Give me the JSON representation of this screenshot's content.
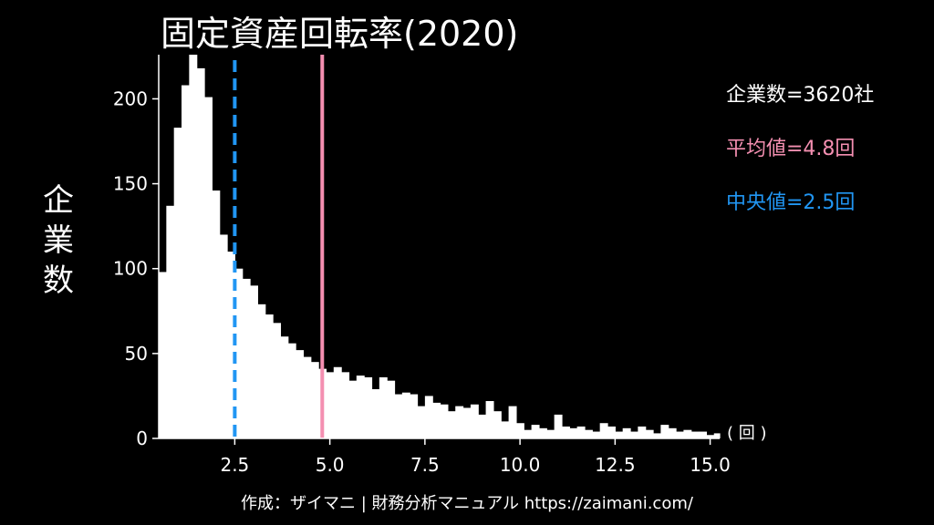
{
  "chart_data": {
    "type": "bar",
    "title": "固定資産回転率(2020)",
    "ylabel": "企業数",
    "xunit": "( 回 )",
    "xlim": [
      0.5,
      15.25
    ],
    "ylim": [
      0,
      226
    ],
    "x_ticks": [
      "2.5",
      "5.0",
      "7.5",
      "10.0",
      "12.5",
      "15.0"
    ],
    "y_ticks": [
      "0",
      "50",
      "100",
      "150",
      "200"
    ],
    "bin_start": 0.5,
    "bin_width": 0.2,
    "values": [
      98,
      137,
      183,
      208,
      226,
      218,
      201,
      146,
      120,
      110,
      100,
      94,
      90,
      79,
      73,
      68,
      60,
      56,
      52,
      48,
      45,
      41,
      39,
      42,
      39,
      34,
      37,
      36,
      29,
      36,
      34,
      26,
      27,
      26,
      19,
      25,
      21,
      20,
      16,
      19,
      18,
      20,
      14,
      22,
      16,
      10,
      19,
      9,
      5,
      8,
      6,
      5,
      14,
      7,
      6,
      7,
      5,
      4,
      9,
      7,
      4,
      6,
      4,
      7,
      5,
      3,
      8,
      6,
      4,
      5,
      4,
      4,
      2,
      3,
      4
    ],
    "mean_line": {
      "x": 4.8,
      "color": "#f48fb1"
    },
    "median_line": {
      "x": 2.5,
      "color": "#2196f3"
    },
    "bar_color": "#ffffff",
    "grid": false,
    "legend_placement": "top-right"
  },
  "stats": {
    "count_label": "企業数=3620社",
    "mean_label": "平均値=4.8回",
    "median_label": "中央値=2.5回",
    "count_color": "#ffffff",
    "mean_color": "#f48fb1",
    "median_color": "#2196f3"
  },
  "ylabel_chars": [
    "企",
    "業",
    "数"
  ],
  "credit": "作成：ザイマニ | 財務分析マニュアル https://zaimani.com/"
}
